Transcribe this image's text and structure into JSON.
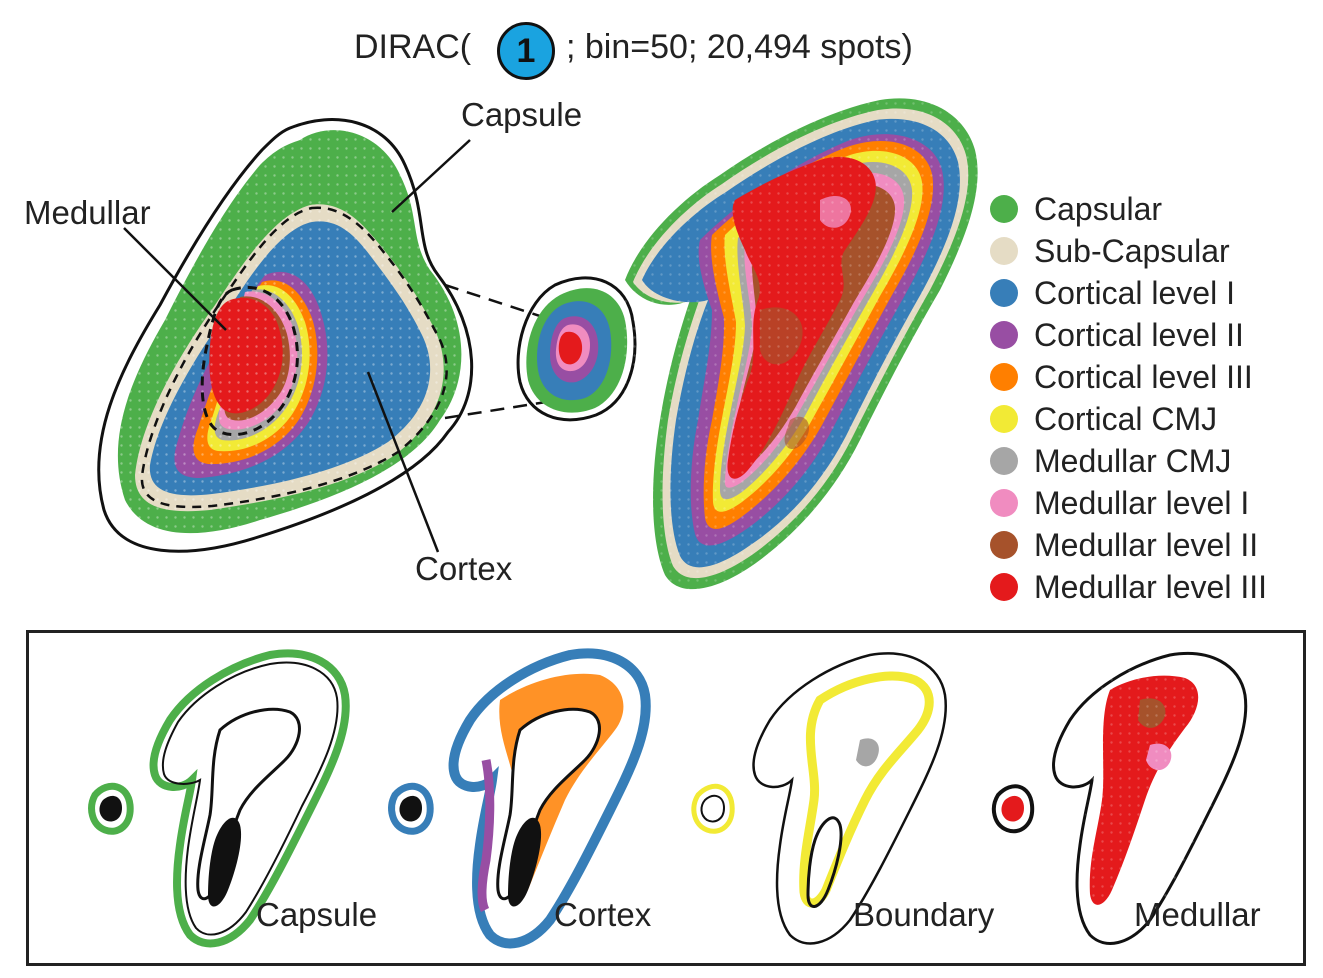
{
  "title": {
    "prefix": "DIRAC(",
    "badge": "1",
    "suffix": "; bin=50; 20,494 spots)"
  },
  "callouts": {
    "capsule": "Capsule",
    "medullar": "Medullar",
    "cortex": "Cortex"
  },
  "legend": [
    {
      "label": "Capsular",
      "color": "#4daf4a"
    },
    {
      "label": "Sub-Capsular",
      "color": "#e5dcc5"
    },
    {
      "label": "Cortical level I",
      "color": "#377eb8"
    },
    {
      "label": "Cortical level II",
      "color": "#984ea3"
    },
    {
      "label": "Cortical level III",
      "color": "#ff7f00"
    },
    {
      "label": "Cortical CMJ",
      "color": "#f2ea35"
    },
    {
      "label": "Medullar CMJ",
      "color": "#a6a6a6"
    },
    {
      "label": "Medullar level I",
      "color": "#f08cc0"
    },
    {
      "label": "Medullar level II",
      "color": "#a6522b"
    },
    {
      "label": "Medullar level III",
      "color": "#e41a1c"
    }
  ],
  "panels": [
    {
      "label": "Capsule"
    },
    {
      "label": "Cortex"
    },
    {
      "label": "Boundary"
    },
    {
      "label": "Medullar"
    }
  ]
}
